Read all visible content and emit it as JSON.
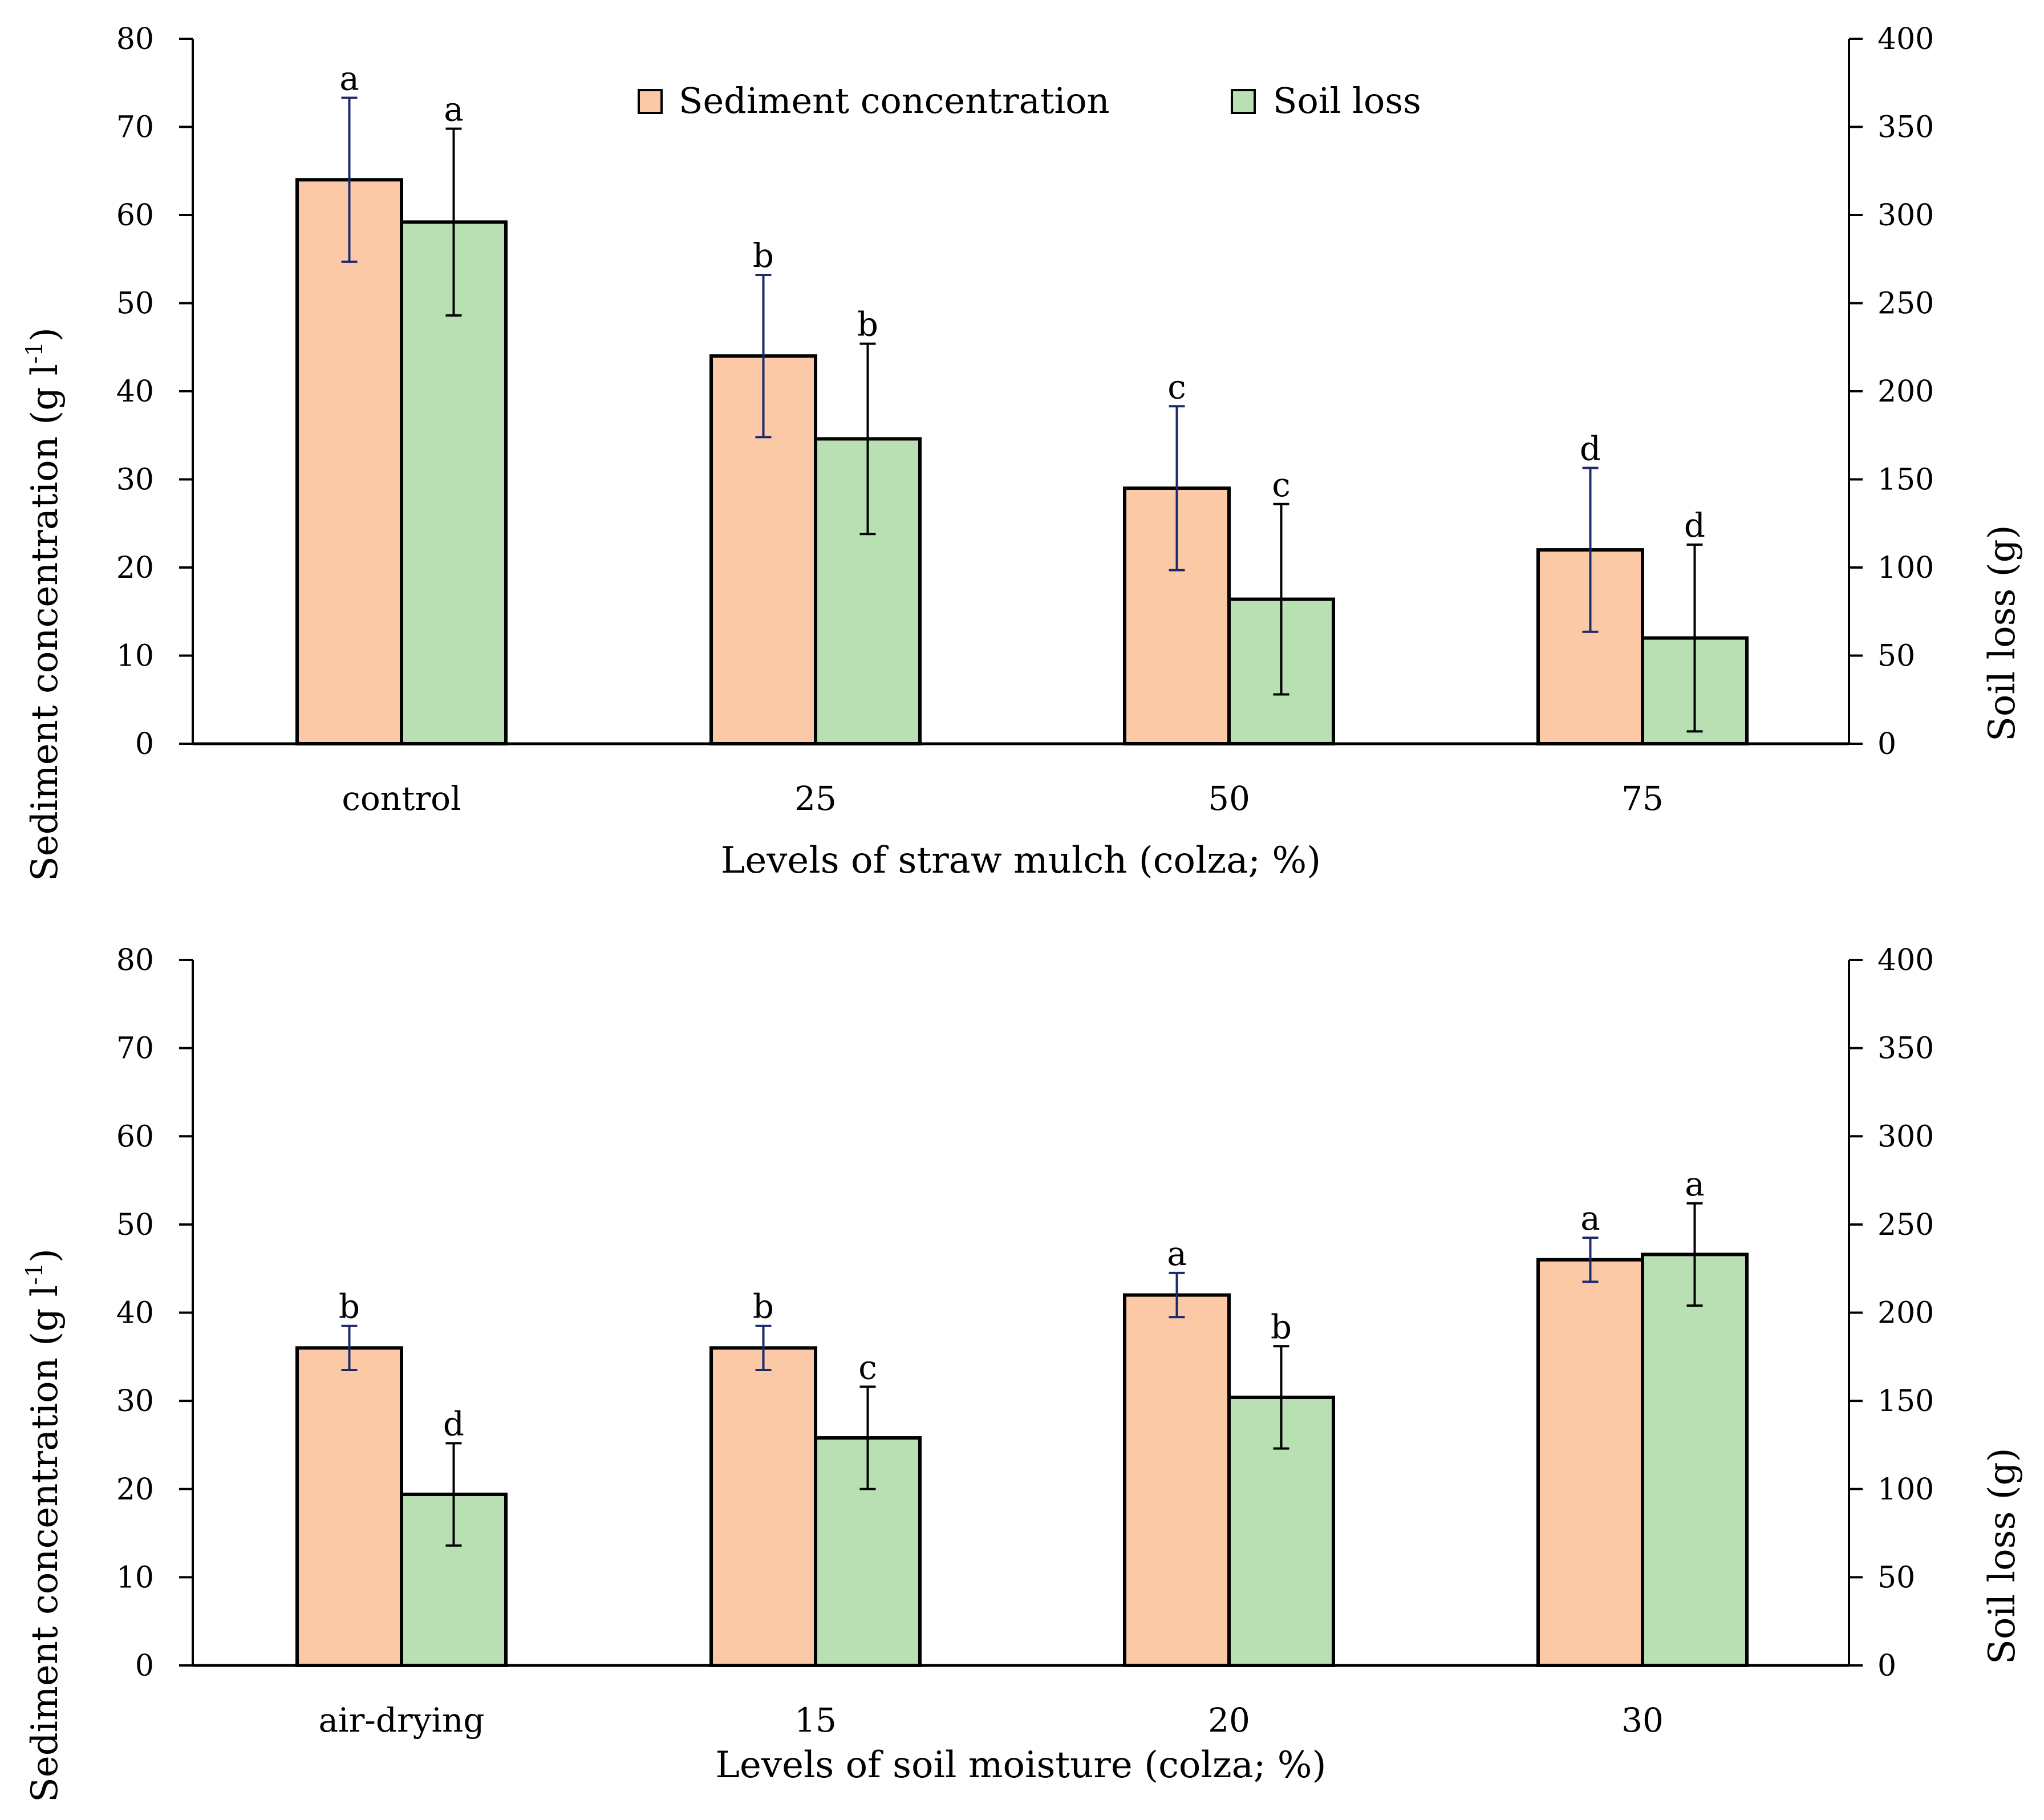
{
  "colors": {
    "sediment": "#fcc9a6",
    "soil": "#b9e0b3",
    "outline": "#000000",
    "sediment_err": "#1b2a6b",
    "soil_err": "#000000"
  },
  "legend": {
    "sediment_label": "Sediment concentration",
    "soil_label": "Soil loss"
  },
  "chart_data": [
    {
      "type": "bar",
      "categories": [
        "control",
        "25",
        "50",
        "75"
      ],
      "xlabel": "Levels of straw mulch (colza; %)",
      "ylabel": "Sediment concentration (g l-1)",
      "ylabel_main": "Sediment concentration (g l",
      "ylabel_sup": "-1",
      "ylabel_close": ")",
      "y2label": "Soil loss (g)",
      "ylim": [
        0,
        80
      ],
      "y2lim": [
        0,
        400
      ],
      "yticks": [
        "0",
        "10",
        "20",
        "30",
        "40",
        "50",
        "60",
        "70",
        "80"
      ],
      "y2ticks": [
        "0",
        "50",
        "100",
        "150",
        "200",
        "250",
        "300",
        "350",
        "400"
      ],
      "series": [
        {
          "name": "Sediment concentration",
          "axis": "left",
          "values": [
            64,
            44,
            29,
            22
          ],
          "errors": [
            9.3,
            9.2,
            9.3,
            9.3
          ],
          "labels": [
            "a",
            "b",
            "c",
            "d"
          ]
        },
        {
          "name": "Soil loss",
          "axis": "right",
          "values": [
            296,
            173,
            82,
            60
          ],
          "errors": [
            53,
            54,
            54,
            53
          ],
          "labels": [
            "a",
            "b",
            "c",
            "d"
          ]
        }
      ]
    },
    {
      "type": "bar",
      "categories": [
        "air-drying",
        "15",
        "20",
        "30"
      ],
      "xlabel": "Levels of  soil moisture (colza; %)",
      "ylabel": "Sediment concentration (g l-1)",
      "ylabel_main": "Sediment concentration (g l",
      "ylabel_sup": "-1",
      "ylabel_close": ")",
      "y2label": "Soil loss (g)",
      "ylim": [
        0,
        80
      ],
      "y2lim": [
        0,
        400
      ],
      "yticks": [
        "0",
        "10",
        "20",
        "30",
        "40",
        "50",
        "60",
        "70",
        "80"
      ],
      "y2ticks": [
        "0",
        "50",
        "100",
        "150",
        "200",
        "250",
        "300",
        "350",
        "400"
      ],
      "series": [
        {
          "name": "Sediment concentration",
          "axis": "left",
          "values": [
            36,
            36,
            42,
            46
          ],
          "errors": [
            2.5,
            2.5,
            2.5,
            2.5
          ],
          "labels": [
            "b",
            "b",
            "a",
            "a"
          ]
        },
        {
          "name": "Soil loss",
          "axis": "right",
          "values": [
            97,
            129,
            152,
            233
          ],
          "errors": [
            29,
            29,
            29,
            29
          ],
          "labels": [
            "d",
            "c",
            "b",
            "a"
          ]
        }
      ]
    }
  ]
}
